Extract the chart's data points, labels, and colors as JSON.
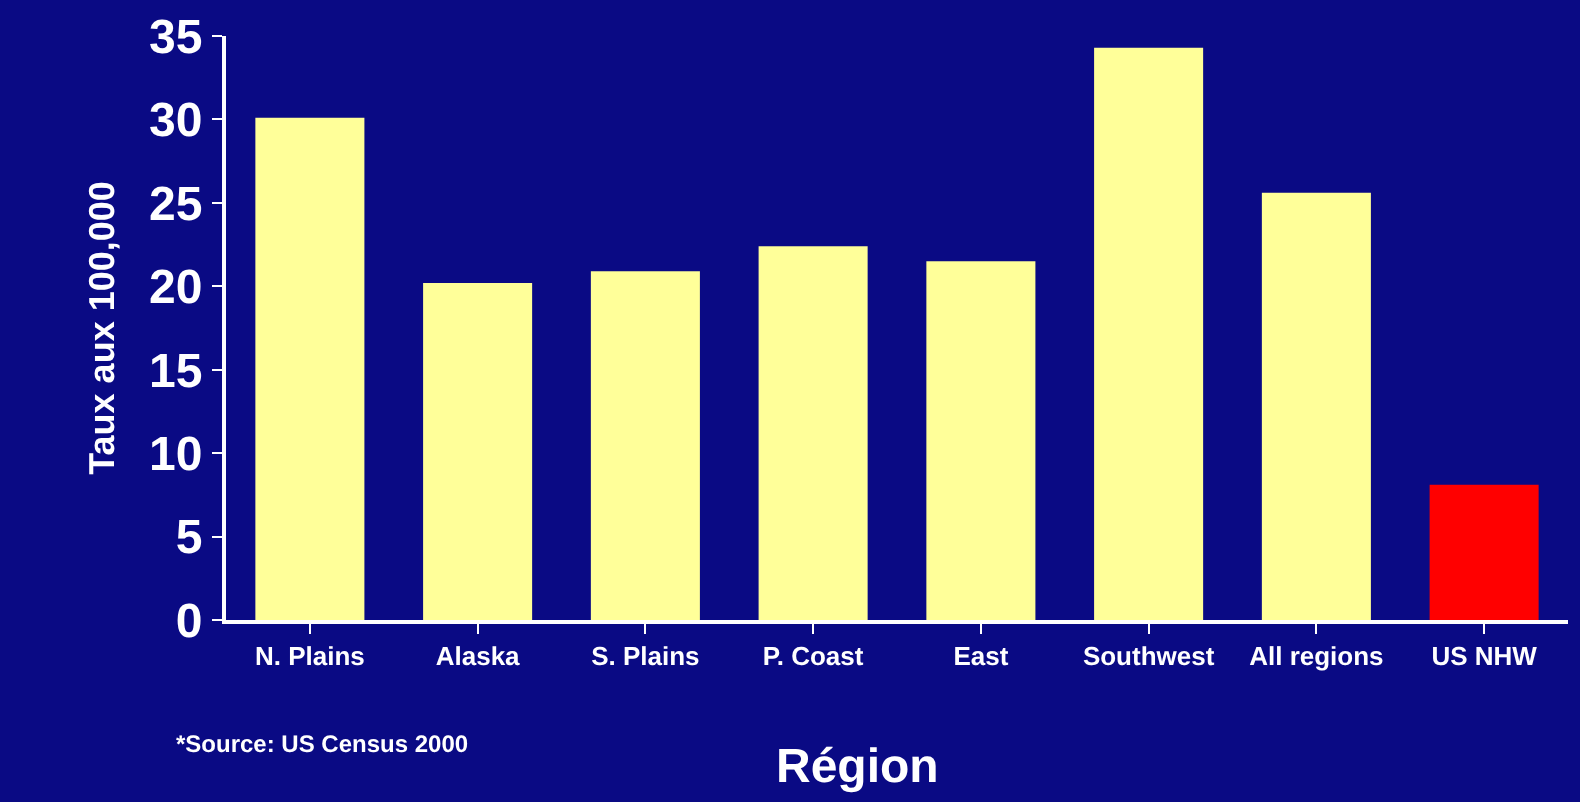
{
  "chart_data": {
    "type": "bar",
    "xlabel": "Région",
    "ylabel": "Taux aux 100,000",
    "categories": [
      "N. Plains",
      "Alaska",
      "S. Plains",
      "P. Coast",
      "East",
      "Southwest",
      "All regions",
      "US NHW"
    ],
    "values": [
      30.1,
      20.2,
      20.9,
      22.4,
      21.5,
      34.3,
      25.6,
      8.1
    ],
    "colors": [
      "#ffff99",
      "#ffff99",
      "#ffff99",
      "#ffff99",
      "#ffff99",
      "#ffff99",
      "#ffff99",
      "#ff0000"
    ],
    "ylim": [
      0,
      35
    ],
    "yticks": [
      0,
      5,
      10,
      15,
      20,
      25,
      30,
      35
    ],
    "grid": false,
    "annotations": [
      "*Source: US Census 2000"
    ]
  }
}
